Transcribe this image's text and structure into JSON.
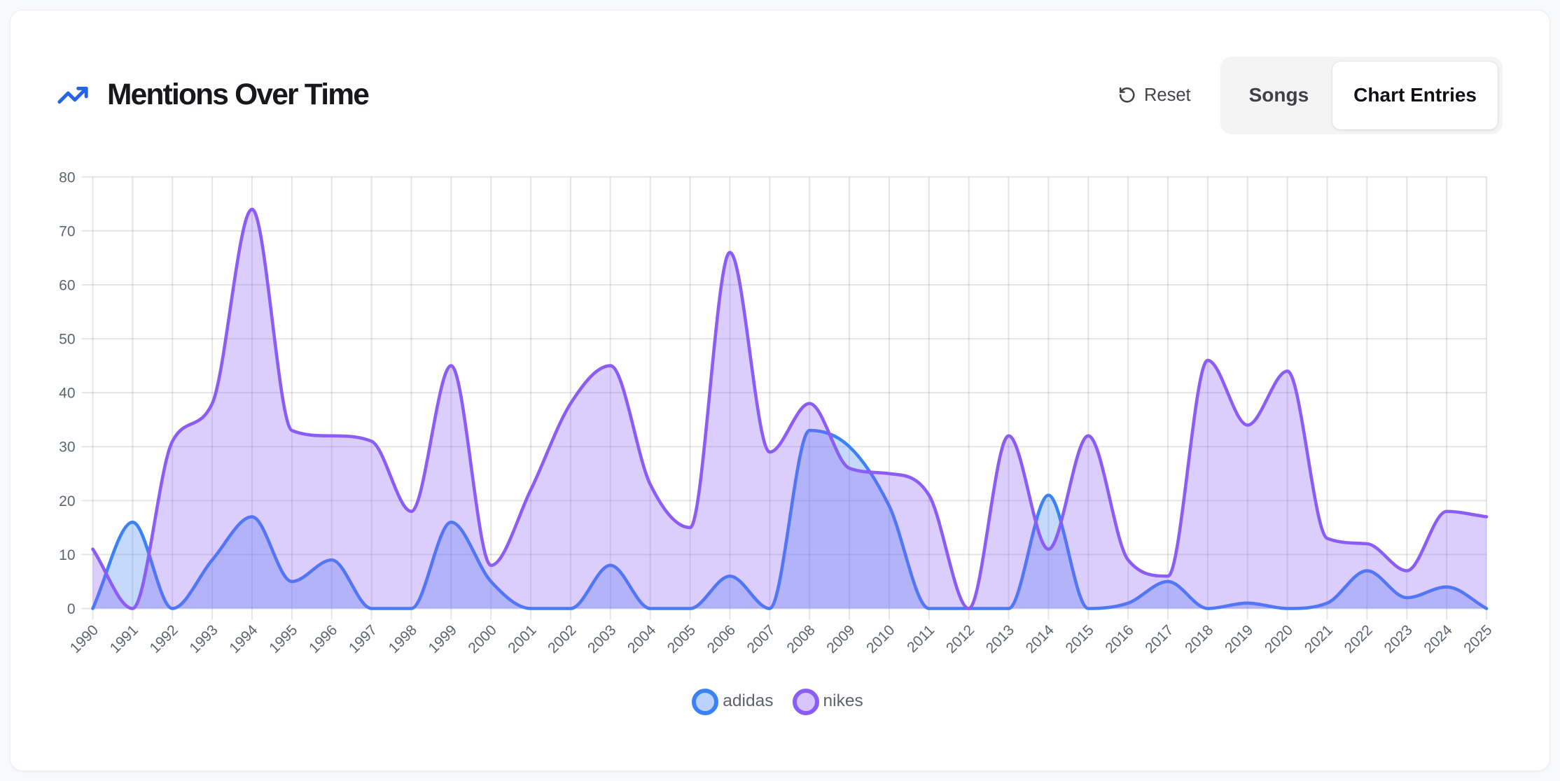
{
  "header": {
    "title": "Mentions Over Time",
    "icon": "trending-up-icon"
  },
  "toolbar": {
    "reset_label": "Reset",
    "segments": [
      {
        "label": "Songs",
        "selected": false
      },
      {
        "label": "Chart Entries",
        "selected": true
      }
    ]
  },
  "chart_data": {
    "type": "area",
    "title": "Mentions Over Time",
    "xlabel": "",
    "ylabel": "",
    "x": [
      1990,
      1991,
      1992,
      1993,
      1994,
      1995,
      1996,
      1997,
      1998,
      1999,
      2000,
      2001,
      2002,
      2003,
      2004,
      2005,
      2006,
      2007,
      2008,
      2009,
      2010,
      2011,
      2012,
      2013,
      2014,
      2015,
      2016,
      2017,
      2018,
      2019,
      2020,
      2021,
      2022,
      2023,
      2024,
      2025
    ],
    "series": [
      {
        "name": "adidas",
        "line_color": "#3b82f6",
        "fill_color": "rgba(59,130,246,0.3)",
        "values": [
          0,
          16,
          0,
          9,
          17,
          5,
          9,
          0,
          0,
          16,
          5,
          0,
          0,
          8,
          0,
          0,
          6,
          0,
          33,
          30,
          19,
          0,
          0,
          0,
          21,
          0,
          1,
          5,
          0,
          1,
          0,
          1,
          7,
          2,
          4,
          0
        ]
      },
      {
        "name": "nikes",
        "line_color": "#8b5cf6",
        "fill_color": "rgba(139,92,246,0.3)",
        "values": [
          11,
          0,
          31,
          38,
          74,
          33,
          32,
          31,
          18,
          45,
          8,
          22,
          38,
          45,
          23,
          15,
          66,
          29,
          38,
          26,
          25,
          21,
          0,
          32,
          11,
          32,
          9,
          6,
          46,
          34,
          44,
          13,
          12,
          7,
          18,
          17
        ]
      }
    ],
    "ylim": [
      0,
      80
    ],
    "yticks": [
      0,
      10,
      20,
      30,
      40,
      50,
      60,
      70,
      80
    ],
    "grid": true,
    "legend_position": "bottom",
    "interpolation": "monotone",
    "x_label_rotation": -45
  },
  "style": {
    "grid_color": "rgba(0,0,0,0.10)",
    "tick_color": "#5c6470",
    "accent_blue": "#2563eb"
  }
}
